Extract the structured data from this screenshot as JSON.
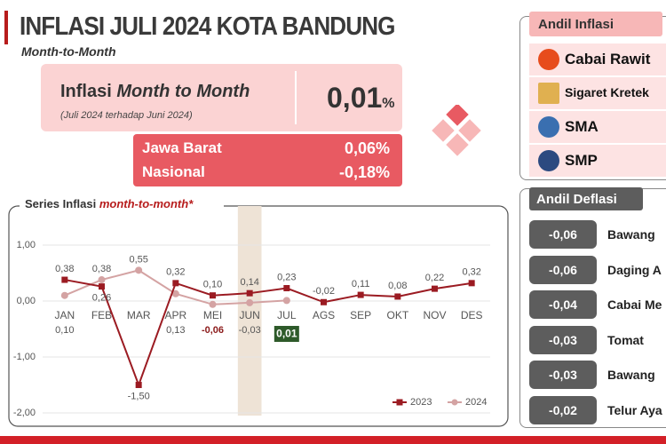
{
  "header": {
    "title": "INFLASI JULI 2024 KOTA BANDUNG",
    "subtitle": "Month-to-Month"
  },
  "summary": {
    "label": "Inflasi",
    "label_emphasis": "Month to Month",
    "note": "(Juli 2024 terhadap Juni 2024)",
    "value": "0,01",
    "unit": "%",
    "rows": [
      {
        "name": "Jawa Barat",
        "value": "0,06%"
      },
      {
        "name": "Nasional",
        "value": "-0,18%"
      }
    ]
  },
  "andil_inflasi": {
    "title": "Andil Inflasi",
    "items": [
      "Cabai Rawit",
      "Sigaret Kretek",
      "SMA",
      "SMP"
    ]
  },
  "andil_deflasi": {
    "title": "Andil Deflasi",
    "items": [
      {
        "value": "-0,06",
        "name": "Bawang"
      },
      {
        "value": "-0,06",
        "name": "Daging A"
      },
      {
        "value": "-0,04",
        "name": "Cabai Me"
      },
      {
        "value": "-0,03",
        "name": "Tomat"
      },
      {
        "value": "-0,03",
        "name": "Bawang"
      },
      {
        "value": "-0,02",
        "name": "Telur Aya"
      }
    ]
  },
  "chart_data": {
    "type": "line",
    "title": "Series Inflasi",
    "title_emphasis": "month-to-month*",
    "categories": [
      "JAN",
      "FEB",
      "MAR",
      "APR",
      "MEI",
      "JUN",
      "JUL",
      "AGS",
      "SEP",
      "OKT",
      "NOV",
      "DES"
    ],
    "series": [
      {
        "name": "2023",
        "color": "#9b1b22",
        "marker": "square",
        "values": [
          0.38,
          0.26,
          -1.5,
          0.32,
          0.1,
          0.14,
          0.23,
          -0.02,
          0.11,
          0.08,
          0.22,
          0.32
        ],
        "value_labels": [
          "0,38",
          "0,26",
          "-1,50",
          "0,32",
          "0,10",
          "0,14",
          "0,23",
          "-0,02",
          "0,11",
          "0,08",
          "0,22",
          "0,32"
        ]
      },
      {
        "name": "2024",
        "color": "#d4a3a3",
        "marker": "circle",
        "values": [
          0.1,
          0.38,
          0.55,
          0.13,
          -0.06,
          -0.03,
          0.01,
          null,
          null,
          null,
          null,
          null
        ],
        "value_labels": [
          "0,10",
          "0,38",
          "0,55",
          "0,13",
          "-0,06",
          "-0,03",
          "0,01",
          null,
          null,
          null,
          null,
          null
        ]
      }
    ],
    "ylim": [
      -2,
      1.5
    ],
    "yticks": [
      {
        "value": 1,
        "label": "1,00"
      },
      {
        "value": 0,
        "label": "0,00"
      },
      {
        "value": -1,
        "label": "-1,00"
      },
      {
        "value": -2,
        "label": "-2,00"
      }
    ],
    "grid": true,
    "legend": "lower right"
  }
}
